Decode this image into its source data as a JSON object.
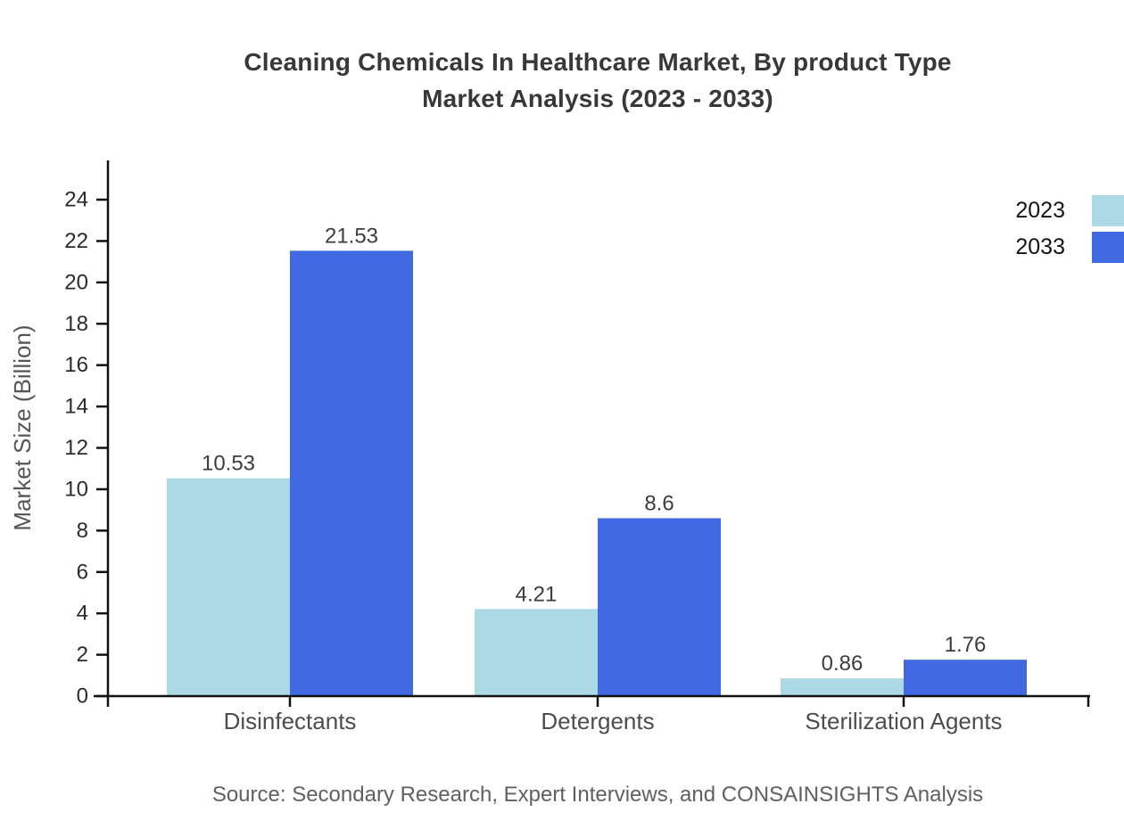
{
  "title": {
    "line1": "Cleaning Chemicals In Healthcare Market, By product Type",
    "line2": "Market Analysis (2023 - 2033)"
  },
  "legend": {
    "items": [
      {
        "label": "2023",
        "color": "#ADD8E6"
      },
      {
        "label": "2033",
        "color": "#4169E1"
      }
    ]
  },
  "chart_data": {
    "type": "bar",
    "categories": [
      "Disinfectants",
      "Detergents",
      "Sterilization Agents"
    ],
    "series": [
      {
        "name": "2023",
        "color": "#ADD8E6",
        "values": [
          10.53,
          4.21,
          0.86
        ]
      },
      {
        "name": "2033",
        "color": "#4169E1",
        "values": [
          21.53,
          8.6,
          1.76
        ]
      }
    ],
    "value_labels": {
      "2023": [
        "10.53",
        "4.21",
        "0.86"
      ],
      "2033": [
        "21.53",
        "8.6",
        "1.76"
      ]
    },
    "title": "Cleaning Chemicals In Healthcare Market, By product Type Market Analysis (2023 - 2033)",
    "xlabel": "",
    "ylabel": "Market Size (Billion)",
    "ylim": [
      0,
      24
    ],
    "yticks": [
      0,
      2,
      4,
      6,
      8,
      10,
      12,
      14,
      16,
      18,
      20,
      22,
      24
    ],
    "grid": false,
    "legend_position": "top-right",
    "bar_label_color": "#3d3d3d",
    "axis_color": "#111111",
    "tick_label_color": "#2b2b2b",
    "category_label_color": "#4d4d4d",
    "ylabel_color": "#555555"
  },
  "source": "Source: Secondary Research, Expert Interviews, and CONSAINSIGHTS Analysis"
}
